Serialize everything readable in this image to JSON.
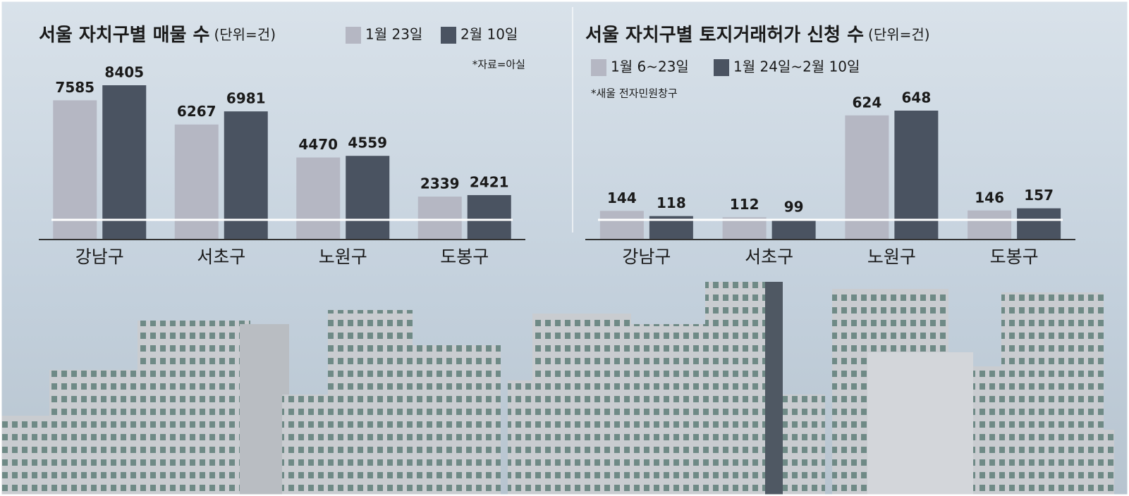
{
  "chart_data": [
    {
      "type": "bar",
      "title": "서울 자치구별 매물 수",
      "unit": "(단위=건)",
      "note": "*자료=아실",
      "categories": [
        "강남구",
        "서초구",
        "노원구",
        "도봉구"
      ],
      "series": [
        {
          "name": "1월 23일",
          "color": "#b5b7c3",
          "values": [
            7585,
            6267,
            4470,
            2339
          ]
        },
        {
          "name": "2월 10일",
          "color": "#4a5361",
          "values": [
            8405,
            6981,
            4559,
            2421
          ]
        }
      ]
    },
    {
      "type": "bar",
      "title": "서울 자치구별 토지거래허가 신청 수",
      "unit": "(단위=건)",
      "note": "*새울 전자민원창구",
      "categories": [
        "강남구",
        "서초구",
        "노원구",
        "도봉구"
      ],
      "series": [
        {
          "name": "1월 6~23일",
          "color": "#b5b7c3",
          "values": [
            144,
            112,
            624,
            146
          ]
        },
        {
          "name": "1월 24일~2월 10일",
          "color": "#4a5361",
          "values": [
            118,
            99,
            648,
            157
          ]
        }
      ]
    }
  ]
}
